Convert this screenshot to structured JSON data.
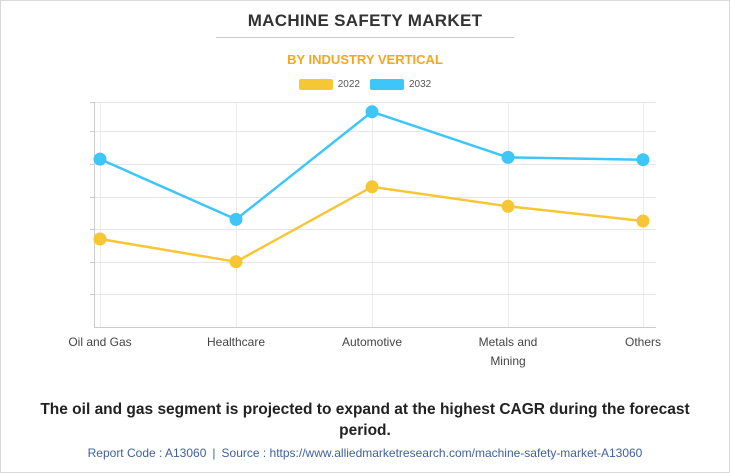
{
  "title": "MACHINE SAFETY MARKET",
  "subtitle": "BY INDUSTRY VERTICAL",
  "colors": {
    "y2022": "#f7c634",
    "y2032": "#3ec6f9",
    "accent": "#f5a623"
  },
  "chart_data": {
    "type": "line",
    "title": "MACHINE SAFETY MARKET",
    "subtitle": "BY INDUSTRY VERTICAL",
    "categories": [
      "Oil and Gas",
      "Healthcare",
      "Automotive",
      "Metals and Mining",
      "Others"
    ],
    "category_lines": [
      [
        "Oil and Gas"
      ],
      [
        "Healthcare"
      ],
      [
        "Automotive"
      ],
      [
        "Metals and",
        "Mining"
      ],
      [
        "Others"
      ]
    ],
    "series": [
      {
        "name": "2022",
        "color": "#f7c634",
        "values": [
          1.7,
          1.0,
          3.3,
          2.7,
          2.25
        ]
      },
      {
        "name": "2032",
        "color": "#3ec6f9",
        "values": [
          4.15,
          2.3,
          5.6,
          4.2,
          4.13
        ]
      }
    ],
    "ylim": [
      -1,
      5.9
    ],
    "y_gridlines": [
      0,
      1,
      2,
      3,
      4,
      5
    ],
    "grid": true,
    "legend_position": "top-center",
    "y_tick_labels_visible": false
  },
  "caption": "The oil and gas segment is projected to expand at the highest CAGR during the forecast period.",
  "footer": {
    "report_code": "Report Code : A13060",
    "separator": "|",
    "source": "Source : https://www.alliedmarketresearch.com/machine-safety-market-A13060"
  }
}
